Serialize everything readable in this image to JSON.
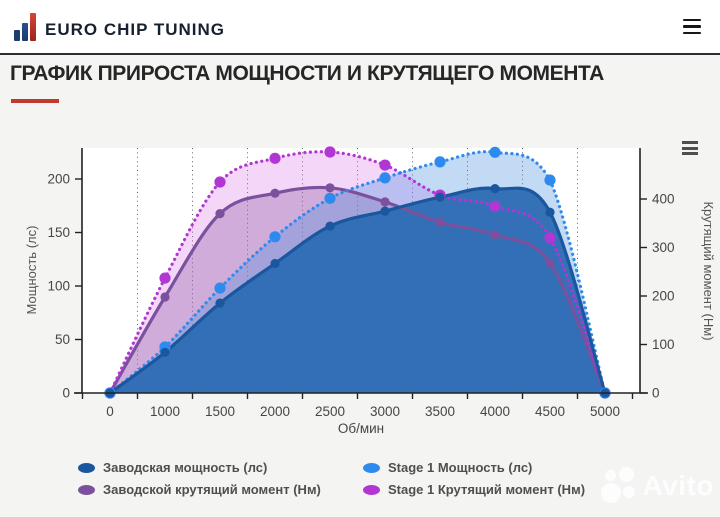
{
  "header": {
    "brand": "EURO CHIP TUNING"
  },
  "page": {
    "title": "ГРАФИК ПРИРОСТА МОЩНОСТИ И КРУТЯЩЕГО МОМЕНТА"
  },
  "watermark": {
    "text": "Avito"
  },
  "chart_data": {
    "type": "line",
    "x_title": "Об/мин",
    "categories": [
      0,
      1000,
      1500,
      2000,
      2500,
      3000,
      3500,
      4000,
      4500,
      5000
    ],
    "y_left": {
      "title": "Мощность (лс)",
      "ticks": [
        0,
        50,
        100,
        150,
        200
      ]
    },
    "y_right": {
      "title": "Крутящий момент (Нм)",
      "ticks": [
        0,
        100,
        200,
        300,
        400
      ]
    },
    "grid": "vertical-dotted",
    "legend_position": "bottom",
    "series": [
      {
        "name": "Заводская мощность (лс)",
        "axis": "left",
        "line": "solid",
        "color": "#1a579f",
        "fill": "rgba(47,109,181,0.97)",
        "marker_r": 4.6,
        "values": [
          0,
          38,
          84,
          121,
          156,
          170,
          183,
          191,
          169,
          0
        ]
      },
      {
        "name": "Stage 1 Мощность (лс)",
        "axis": "left",
        "line": "dotted",
        "color": "#2f8af0",
        "fill": "rgba(74,144,226,0.33)",
        "marker_r": 5.6,
        "values": [
          0,
          43,
          98,
          146,
          182,
          201,
          216,
          225,
          199,
          0
        ]
      },
      {
        "name": "Заводской крутящий момент (Нм)",
        "axis": "right",
        "line": "solid",
        "color": "#7b519d",
        "fill": "rgba(140,95,160,0.35)",
        "marker_r": 4.6,
        "values": [
          0,
          198,
          370,
          412,
          423,
          394,
          352,
          326,
          268,
          0
        ]
      },
      {
        "name": "Stage 1 Крутящий момент (Нм)",
        "axis": "right",
        "line": "dotted",
        "color": "#b136d4",
        "fill": "rgba(214,120,232,0.30)",
        "marker_r": 5.6,
        "values": [
          0,
          237,
          435,
          484,
          497,
          470,
          408,
          385,
          320,
          0
        ]
      }
    ]
  }
}
